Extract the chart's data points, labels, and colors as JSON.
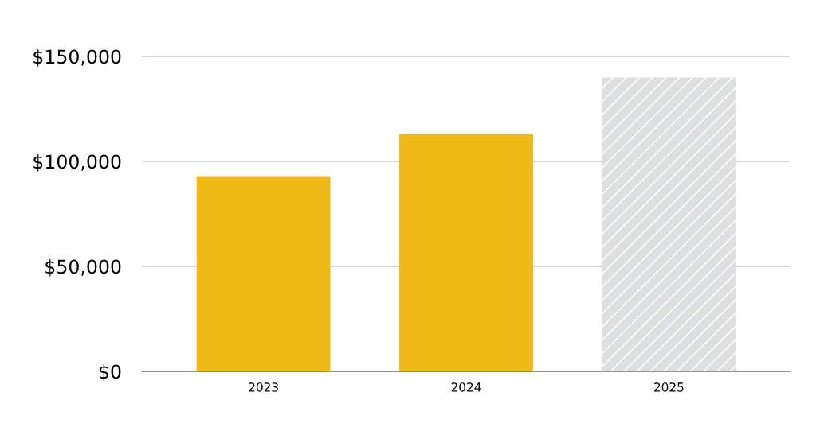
{
  "chart_data": {
    "type": "bar",
    "categories": [
      "2023",
      "2024",
      "2025"
    ],
    "values": [
      93000,
      113000,
      140000
    ],
    "colors": [
      "#f2ba19",
      "#f2ba19",
      "#dedfe0"
    ],
    "ylim": [
      0,
      150000
    ],
    "yticks": [
      {
        "value": 0,
        "label": "$0"
      },
      {
        "value": 50000,
        "label": "$50,000"
      },
      {
        "value": 100000,
        "label": "$100,000"
      },
      {
        "value": 150000,
        "label": "$150,000"
      }
    ],
    "grid": "y",
    "legend": false
  }
}
